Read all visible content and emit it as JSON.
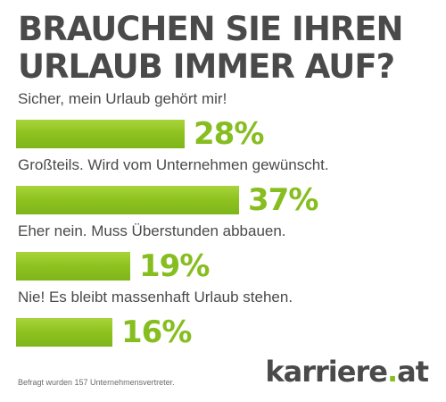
{
  "chart_data": {
    "type": "bar",
    "orientation": "horizontal",
    "title_lines": [
      "BRAUCHEN SIE IHREN",
      "URLAUB IMMER AUF?"
    ],
    "categories": [
      "Sicher, mein Urlaub gehört mir!",
      "Großteils. Wird vom Unternehmen gewünscht.",
      "Eher nein. Muss Überstunden abbauen.",
      "Nie! Es bleibt massenhaft Urlaub stehen."
    ],
    "values": [
      28,
      37,
      19,
      16
    ],
    "value_labels": [
      "28%",
      "37%",
      "19%",
      "16%"
    ],
    "xlim": [
      0,
      37
    ],
    "grid": false,
    "bar_color": "#8dc21f",
    "label_color": "#86bd1f",
    "text_color": "#4a4a4a"
  },
  "footnote": "Befragt wurden 157 Unternehmensvertreter.",
  "logo": {
    "name": "karriere",
    "dot": ".",
    "tld": "at"
  }
}
